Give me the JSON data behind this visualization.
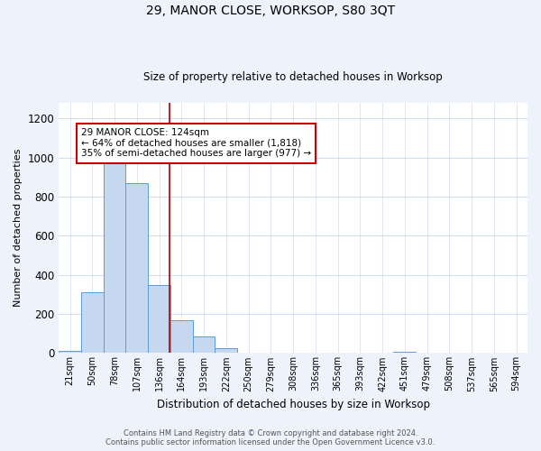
{
  "title": "29, MANOR CLOSE, WORKSOP, S80 3QT",
  "subtitle": "Size of property relative to detached houses in Worksop",
  "xlabel": "Distribution of detached houses by size in Worksop",
  "ylabel": "Number of detached properties",
  "categories": [
    "21sqm",
    "50sqm",
    "78sqm",
    "107sqm",
    "136sqm",
    "164sqm",
    "193sqm",
    "222sqm",
    "250sqm",
    "279sqm",
    "308sqm",
    "336sqm",
    "365sqm",
    "393sqm",
    "422sqm",
    "451sqm",
    "479sqm",
    "508sqm",
    "537sqm",
    "565sqm",
    "594sqm"
  ],
  "values": [
    10,
    310,
    975,
    870,
    350,
    170,
    85,
    25,
    2,
    0,
    0,
    0,
    0,
    0,
    0,
    5,
    0,
    0,
    0,
    0,
    0
  ],
  "bar_color": "#c5d8ef",
  "bar_edge_color": "#5b9bd5",
  "vline_x_index": 4.45,
  "vline_color": "#aa0000",
  "annotation_text": "29 MANOR CLOSE: 124sqm\n← 64% of detached houses are smaller (1,818)\n35% of semi-detached houses are larger (977) →",
  "annotation_box_color": "#cc0000",
  "ylim": [
    0,
    1280
  ],
  "yticks": [
    0,
    200,
    400,
    600,
    800,
    1000,
    1200
  ],
  "footer_line1": "Contains HM Land Registry data © Crown copyright and database right 2024.",
  "footer_line2": "Contains public sector information licensed under the Open Government Licence v3.0.",
  "bg_color": "#eef2fa",
  "plot_bg_color": "#ffffff",
  "grid_color": "#c8d4e8"
}
